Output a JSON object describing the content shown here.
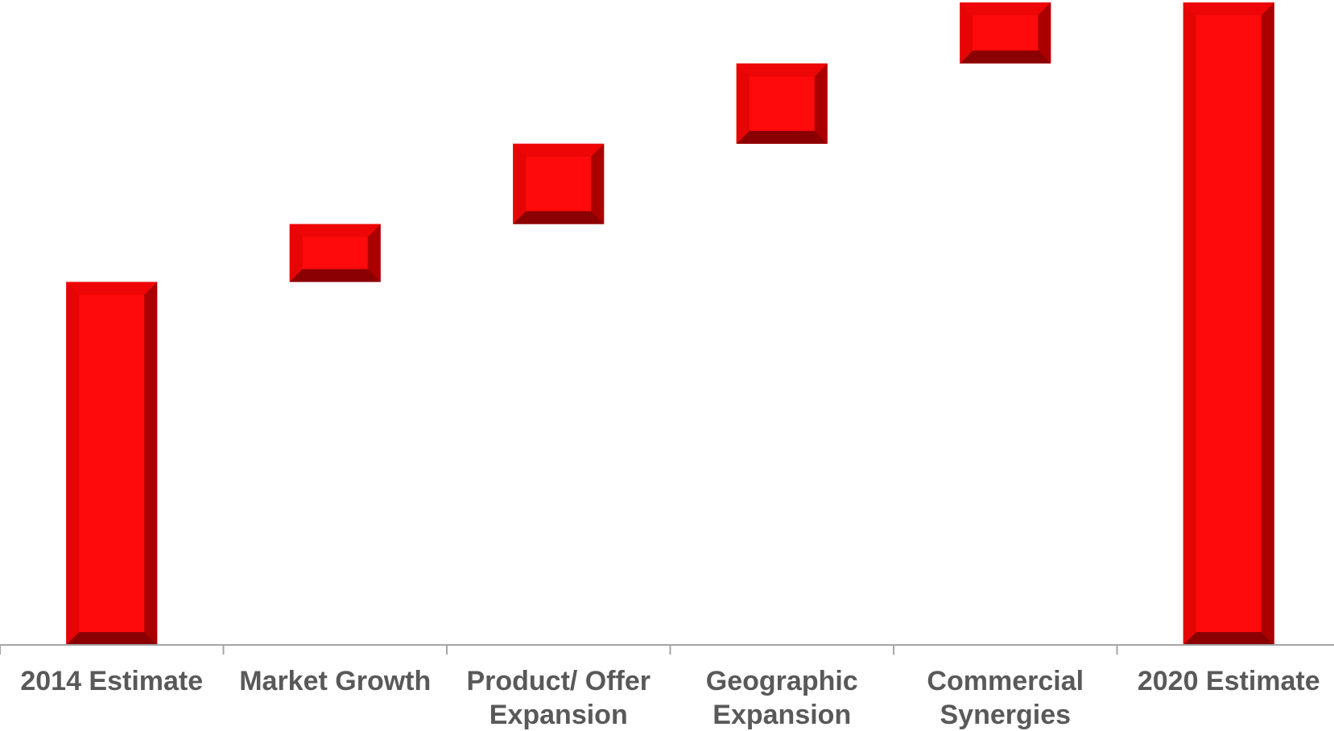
{
  "chart_data": {
    "type": "bar",
    "subtype": "waterfall",
    "title": "",
    "xlabel": "",
    "ylabel": "",
    "y_axis_visible": false,
    "grid": false,
    "legend": "none",
    "ylim": [
      0,
      100
    ],
    "categories": [
      [
        "2014 Estimate"
      ],
      [
        "Market Growth"
      ],
      [
        "Product/ Offer",
        "Expansion"
      ],
      [
        "Geographic",
        "Expansion"
      ],
      [
        "Commercial",
        "Synergies"
      ],
      [
        "2020 Estimate"
      ]
    ],
    "bars": [
      {
        "kind": "total",
        "start": 0,
        "end": 56.5
      },
      {
        "kind": "increment",
        "start": 56.5,
        "end": 65.5
      },
      {
        "kind": "increment",
        "start": 65.5,
        "end": 78.0
      },
      {
        "kind": "increment",
        "start": 78.0,
        "end": 90.5
      },
      {
        "kind": "increment",
        "start": 90.5,
        "end": 100.0
      },
      {
        "kind": "total",
        "start": 0,
        "end": 100.0
      }
    ],
    "colors": {
      "bar_face": "#ff0a0a",
      "bevel_left": "#e50505",
      "bevel_top": "#ee0606",
      "bevel_right": "#aa0000",
      "bevel_bottom": "#8b0000",
      "axis": "#a6a6a6",
      "label": "#595959"
    }
  }
}
